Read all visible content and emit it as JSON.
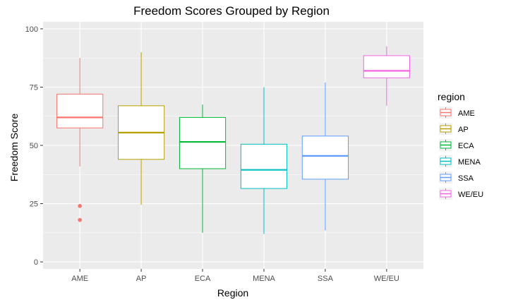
{
  "chart_data": {
    "type": "box",
    "title": "Freedom Scores Grouped by Region",
    "xlabel": "Region",
    "ylabel": "Freedom Score",
    "categories": [
      "AME",
      "AP",
      "ECA",
      "MENA",
      "SSA",
      "WE/EU"
    ],
    "ylim": [
      -3,
      103
    ],
    "yticks": [
      0,
      25,
      50,
      75,
      100
    ],
    "grid": true,
    "legend": {
      "title": "region",
      "position": "right"
    },
    "colors": {
      "AME": "#F8766D",
      "AP": "#B79F00",
      "ECA": "#00BA38",
      "MENA": "#00BFC4",
      "SSA": "#619CFF",
      "WE/EU": "#F564E3"
    },
    "boxes": [
      {
        "region": "AME",
        "min": 41,
        "q1": 57.5,
        "median": 62,
        "q3": 72,
        "max": 87.5,
        "outliers": [
          24,
          18
        ]
      },
      {
        "region": "AP",
        "min": 24.5,
        "q1": 44,
        "median": 55.5,
        "q3": 67,
        "max": 90,
        "outliers": []
      },
      {
        "region": "ECA",
        "min": 12.5,
        "q1": 40,
        "median": 51.5,
        "q3": 62,
        "max": 67.5,
        "outliers": []
      },
      {
        "region": "MENA",
        "min": 12,
        "q1": 31.5,
        "median": 39.5,
        "q3": 50.5,
        "max": 75,
        "outliers": []
      },
      {
        "region": "SSA",
        "min": 13.5,
        "q1": 35.5,
        "median": 45.5,
        "q3": 54,
        "max": 77,
        "outliers": []
      },
      {
        "region": "WE/EU",
        "min": 67,
        "q1": 79,
        "median": 82,
        "q3": 88.5,
        "max": 92.5,
        "outliers": []
      }
    ]
  }
}
